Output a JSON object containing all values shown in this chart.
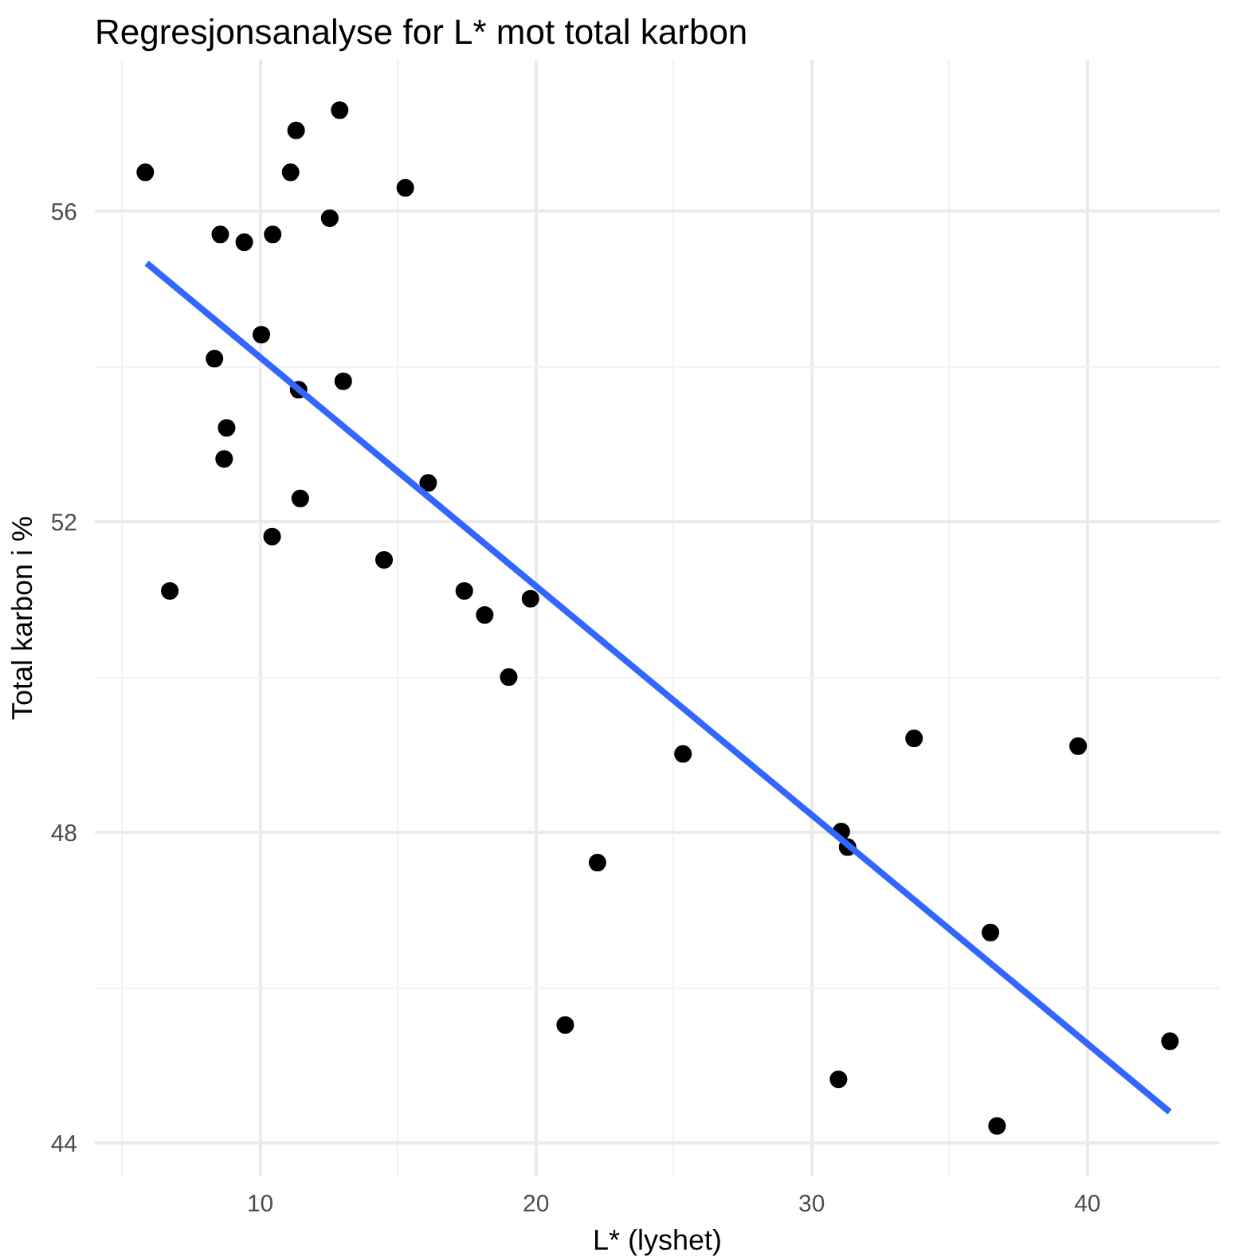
{
  "chart_data": {
    "type": "scatter",
    "title": "Regresjonsanalyse for L* mot total karbon",
    "xlabel": "L* (lyshet)",
    "ylabel": "Total karbon i %",
    "xlim": [
      4,
      44.8
    ],
    "ylim": [
      43.57,
      57.95
    ],
    "xticks": [
      10,
      20,
      30,
      40
    ],
    "yticks": [
      44,
      48,
      52,
      56
    ],
    "grid": true,
    "series": [
      {
        "marker": "circle",
        "color": "#000000",
        "x": [
          5.83,
          11.1,
          11.3,
          12.88,
          15.26,
          12.52,
          8.55,
          9.42,
          10.45,
          10.04,
          8.34,
          11.39,
          13.01,
          8.78,
          8.69,
          16.09,
          11.45,
          10.43,
          14.49,
          6.72,
          17.4,
          18.14,
          19.8,
          19.01,
          25.33,
          22.23,
          21.06,
          33.71,
          39.66,
          31.07,
          31.3,
          36.48,
          42.99,
          30.97,
          36.72
        ],
        "values": [
          56.5,
          56.5,
          57.04,
          57.3,
          56.3,
          55.91,
          55.7,
          55.6,
          55.7,
          54.41,
          54.1,
          53.7,
          53.81,
          53.21,
          52.81,
          52.5,
          52.3,
          51.81,
          51.51,
          51.11,
          51.11,
          50.8,
          51.01,
          50.0,
          49.01,
          47.61,
          45.52,
          49.21,
          49.11,
          48.01,
          47.81,
          46.71,
          45.31,
          44.82,
          44.22
        ]
      },
      {
        "type": "line",
        "marker": "none",
        "color": "#3366ff",
        "x": [
          5.88,
          42.98
        ],
        "values": [
          55.33,
          44.4
        ]
      }
    ]
  }
}
